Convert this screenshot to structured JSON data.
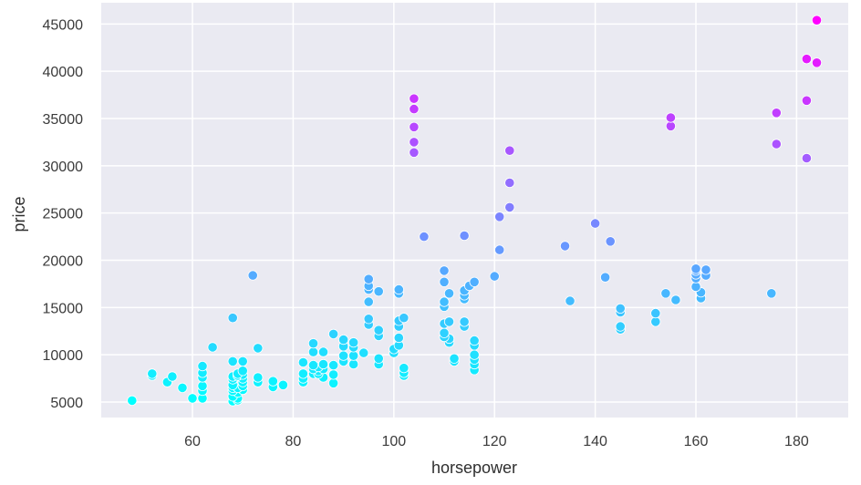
{
  "chart_data": {
    "type": "scatter",
    "title": "",
    "xlabel": "horsepower",
    "ylabel": "price",
    "xlim": [
      42,
      190
    ],
    "ylim": [
      3300,
      47000
    ],
    "grid": true,
    "legend": null,
    "background": "#eaeaf2",
    "grid_color": "#ffffff",
    "colormap": "cool (hue mapped to price: cyan #00ffff low → magenta #ff00ff high)",
    "x_ticks": [
      60,
      80,
      100,
      120,
      140,
      160,
      180
    ],
    "x_tick_labels": [
      "60",
      "80",
      "100",
      "120",
      "140",
      "160",
      "180"
    ],
    "y_ticks": [
      5000,
      10000,
      15000,
      20000,
      25000,
      30000,
      35000,
      40000,
      45000
    ],
    "y_tick_labels": [
      "5000",
      "10000",
      "15000",
      "20000",
      "25000",
      "30000",
      "35000",
      "40000",
      "45000"
    ],
    "points": [
      [
        48,
        5150
      ],
      [
        52,
        7800
      ],
      [
        52,
        8000
      ],
      [
        55,
        7100
      ],
      [
        56,
        7700
      ],
      [
        58,
        6500
      ],
      [
        60,
        5400
      ],
      [
        62,
        5400
      ],
      [
        62,
        6200
      ],
      [
        62,
        6700
      ],
      [
        62,
        7600
      ],
      [
        62,
        8100
      ],
      [
        62,
        8800
      ],
      [
        64,
        10800
      ],
      [
        68,
        5100
      ],
      [
        68,
        5600
      ],
      [
        68,
        6200
      ],
      [
        68,
        6500
      ],
      [
        68,
        6800
      ],
      [
        68,
        7400
      ],
      [
        68,
        7700
      ],
      [
        68,
        9300
      ],
      [
        68,
        13900
      ],
      [
        69,
        5200
      ],
      [
        69,
        5400
      ],
      [
        69,
        6000
      ],
      [
        69,
        6500
      ],
      [
        69,
        7800
      ],
      [
        69,
        8000
      ],
      [
        70,
        6300
      ],
      [
        70,
        6700
      ],
      [
        70,
        7100
      ],
      [
        70,
        7500
      ],
      [
        70,
        7900
      ],
      [
        70,
        8300
      ],
      [
        70,
        9300
      ],
      [
        72,
        18400
      ],
      [
        73,
        7100
      ],
      [
        73,
        7600
      ],
      [
        73,
        10700
      ],
      [
        76,
        6600
      ],
      [
        76,
        7200
      ],
      [
        78,
        6800
      ],
      [
        82,
        7100
      ],
      [
        82,
        7500
      ],
      [
        82,
        8000
      ],
      [
        82,
        9200
      ],
      [
        84,
        8000
      ],
      [
        84,
        8500
      ],
      [
        84,
        8900
      ],
      [
        84,
        10300
      ],
      [
        84,
        11200
      ],
      [
        85,
        8000
      ],
      [
        85,
        8300
      ],
      [
        85,
        8700
      ],
      [
        86,
        7600
      ],
      [
        86,
        8500
      ],
      [
        86,
        9000
      ],
      [
        86,
        10300
      ],
      [
        88,
        7000
      ],
      [
        88,
        7900
      ],
      [
        88,
        8900
      ],
      [
        88,
        12200
      ],
      [
        90,
        9300
      ],
      [
        90,
        9900
      ],
      [
        90,
        10900
      ],
      [
        90,
        11600
      ],
      [
        92,
        9000
      ],
      [
        92,
        9900
      ],
      [
        92,
        10800
      ],
      [
        92,
        11300
      ],
      [
        94,
        10200
      ],
      [
        95,
        13200
      ],
      [
        95,
        13800
      ],
      [
        95,
        15600
      ],
      [
        95,
        16900
      ],
      [
        95,
        17300
      ],
      [
        95,
        18000
      ],
      [
        97,
        9000
      ],
      [
        97,
        9600
      ],
      [
        97,
        12000
      ],
      [
        97,
        12600
      ],
      [
        97,
        16700
      ],
      [
        100,
        10200
      ],
      [
        100,
        10600
      ],
      [
        101,
        11000
      ],
      [
        101,
        11800
      ],
      [
        101,
        13000
      ],
      [
        101,
        13600
      ],
      [
        101,
        16500
      ],
      [
        101,
        16900
      ],
      [
        102,
        7800
      ],
      [
        102,
        8100
      ],
      [
        102,
        8600
      ],
      [
        102,
        13900
      ],
      [
        104,
        31400
      ],
      [
        104,
        32500
      ],
      [
        104,
        34100
      ],
      [
        104,
        36000
      ],
      [
        104,
        37100
      ],
      [
        106,
        22500
      ],
      [
        110,
        11900
      ],
      [
        110,
        12300
      ],
      [
        110,
        13300
      ],
      [
        110,
        15100
      ],
      [
        110,
        15600
      ],
      [
        110,
        17700
      ],
      [
        110,
        18900
      ],
      [
        111,
        11300
      ],
      [
        111,
        11700
      ],
      [
        111,
        13500
      ],
      [
        111,
        16500
      ],
      [
        112,
        9300
      ],
      [
        112,
        9600
      ],
      [
        114,
        13000
      ],
      [
        114,
        13500
      ],
      [
        114,
        15900
      ],
      [
        114,
        16300
      ],
      [
        114,
        16800
      ],
      [
        114,
        22600
      ],
      [
        115,
        17300
      ],
      [
        116,
        17700
      ],
      [
        116,
        8400
      ],
      [
        116,
        9000
      ],
      [
        116,
        9500
      ],
      [
        116,
        10000
      ],
      [
        116,
        11000
      ],
      [
        116,
        11500
      ],
      [
        120,
        18300
      ],
      [
        121,
        21100
      ],
      [
        121,
        24600
      ],
      [
        123,
        25600
      ],
      [
        123,
        28200
      ],
      [
        123,
        31600
      ],
      [
        134,
        21500
      ],
      [
        135,
        15700
      ],
      [
        140,
        23900
      ],
      [
        142,
        18200
      ],
      [
        143,
        22000
      ],
      [
        145,
        12700
      ],
      [
        145,
        13000
      ],
      [
        145,
        14500
      ],
      [
        145,
        14900
      ],
      [
        152,
        13500
      ],
      [
        152,
        14400
      ],
      [
        154,
        16500
      ],
      [
        155,
        34200
      ],
      [
        155,
        35100
      ],
      [
        156,
        15800
      ],
      [
        160,
        17200
      ],
      [
        160,
        18100
      ],
      [
        160,
        18500
      ],
      [
        160,
        18900
      ],
      [
        160,
        19100
      ],
      [
        161,
        16000
      ],
      [
        161,
        16600
      ],
      [
        162,
        18400
      ],
      [
        162,
        19000
      ],
      [
        175,
        16500
      ],
      [
        176,
        32300
      ],
      [
        176,
        35600
      ],
      [
        182,
        30800
      ],
      [
        182,
        36900
      ],
      [
        182,
        41300
      ],
      [
        184,
        40900
      ],
      [
        184,
        45400
      ]
    ]
  }
}
